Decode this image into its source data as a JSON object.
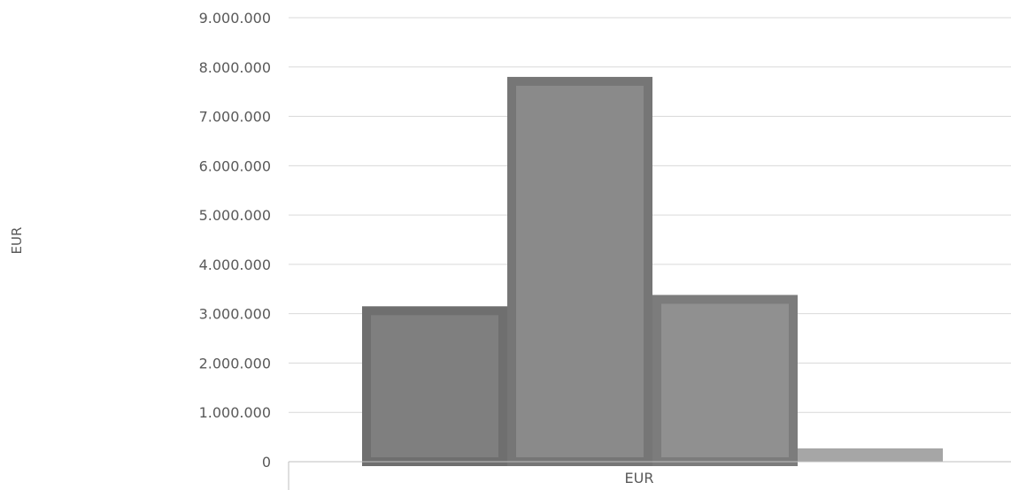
{
  "chart_data": {
    "type": "bar",
    "categories": [
      "EUR"
    ],
    "series": [
      {
        "values": [
          3150000
        ],
        "color": "#7f7f7f",
        "border": "#6f6f6f"
      },
      {
        "values": [
          7800000
        ],
        "color": "#8a8a8a",
        "border": "#767676"
      },
      {
        "values": [
          3380000
        ],
        "color": "#909090",
        "border": "#7c7c7c"
      },
      {
        "values": [
          270000
        ],
        "color": "#a6a6a6",
        "border": "#a6a6a6"
      }
    ],
    "ylabel": "EUR",
    "ylim": [
      0,
      9000000
    ],
    "y_ticks": [
      0,
      1000000,
      2000000,
      3000000,
      4000000,
      5000000,
      6000000,
      7000000,
      8000000,
      9000000
    ],
    "y_tick_labels": [
      "0",
      "1.000.000",
      "2.000.000",
      "3.000.000",
      "4.000.000",
      "5.000.000",
      "6.000.000",
      "7.000.000",
      "8.000.000",
      "9.000.000"
    ],
    "grid": true,
    "legend": "none"
  }
}
